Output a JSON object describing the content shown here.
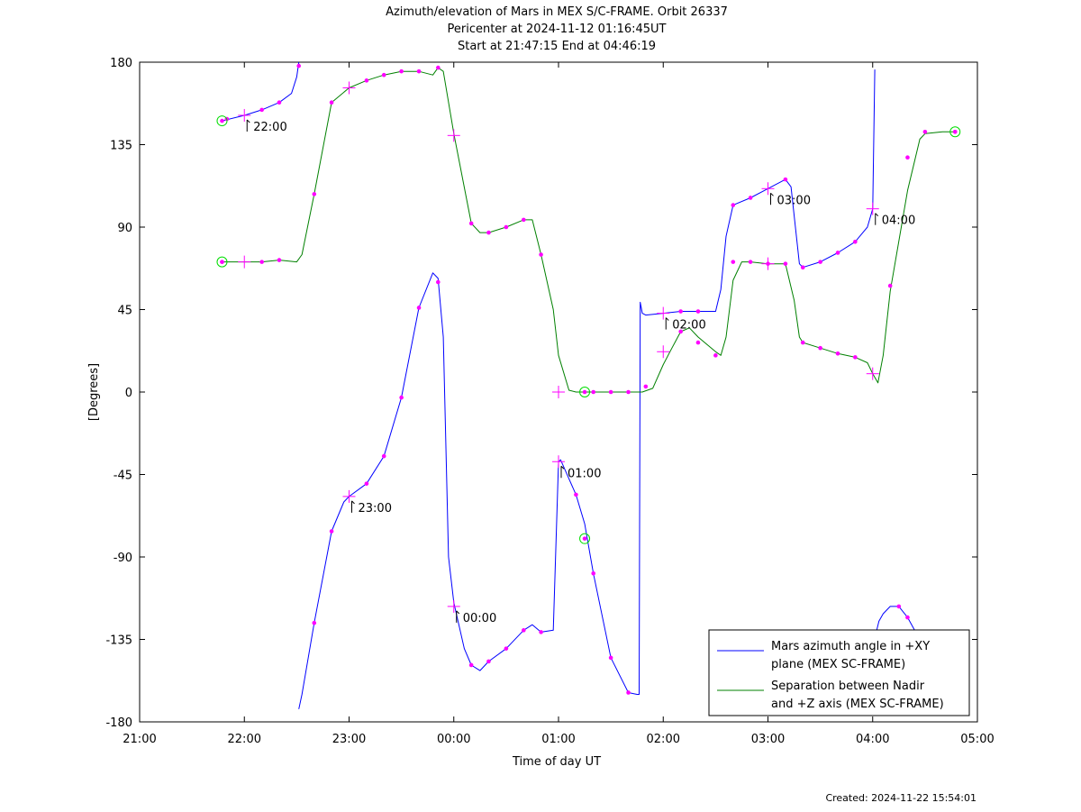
{
  "chart_data": {
    "type": "line",
    "title": [
      "Azimuth/elevation of Mars in MEX S/C-FRAME.  Orbit 26337",
      "Pericenter at 2024-11-12 01:16:45UT",
      "Start at 21:47:15 End at 04:46:19"
    ],
    "xlabel": "Time of day UT",
    "ylabel": "[Degrees]",
    "footer": "Created: 2024-11-22 15:54:01",
    "x_unit": "hours since 21:00 UT",
    "xlim": [
      0,
      8
    ],
    "ylim": [
      -180,
      180
    ],
    "x_tick_labels": [
      "21:00",
      "22:00",
      "23:00",
      "00:00",
      "01:00",
      "02:00",
      "03:00",
      "04:00",
      "05:00"
    ],
    "y_ticks": [
      180,
      135,
      90,
      45,
      0,
      -45,
      -90,
      -135,
      -180
    ],
    "legend": {
      "placement": "bottom-right",
      "entries": [
        {
          "line1": "Mars azimuth angle in +XY",
          "line2": "plane (MEX SC-FRAME)",
          "color": "#0000ff"
        },
        {
          "line1": "Separation between Nadir",
          "line2": "and +Z axis (MEX SC-FRAME)",
          "color": "#008000"
        }
      ]
    },
    "series": [
      {
        "name": "Mars azimuth angle in +XY plane (MEX SC-FRAME)",
        "color": "#0000ff",
        "segments": [
          [
            [
              0.787,
              148
            ],
            [
              1,
              151
            ],
            [
              1.167,
              154
            ],
            [
              1.333,
              158
            ],
            [
              1.45,
              163
            ],
            [
              1.5,
              172
            ],
            [
              1.52,
              180
            ]
          ],
          [
            [
              1.52,
              -173
            ],
            [
              1.55,
              -165
            ],
            [
              1.667,
              -126
            ],
            [
              1.833,
              -76
            ],
            [
              1.95,
              -60
            ],
            [
              2,
              -57
            ],
            [
              2.167,
              -50
            ],
            [
              2.333,
              -35
            ],
            [
              2.5,
              -3
            ],
            [
              2.667,
              46
            ],
            [
              2.8,
              65
            ],
            [
              2.85,
              62
            ],
            [
              2.9,
              30
            ],
            [
              2.95,
              -90
            ],
            [
              3,
              -115
            ],
            [
              3.1,
              -140
            ],
            [
              3.167,
              -149
            ],
            [
              3.25,
              -152
            ],
            [
              3.333,
              -147
            ],
            [
              3.5,
              -140
            ],
            [
              3.667,
              -130
            ],
            [
              3.75,
              -127
            ],
            [
              3.833,
              -131
            ],
            [
              3.95,
              -130
            ],
            [
              4,
              -38
            ],
            [
              4.02,
              -37
            ],
            [
              4.167,
              -56
            ],
            [
              4.25,
              -72
            ],
            [
              4.333,
              -99
            ],
            [
              4.5,
              -145
            ],
            [
              4.667,
              -164
            ],
            [
              4.75,
              -165
            ],
            [
              4.77,
              -165
            ],
            [
              4.78,
              49
            ],
            [
              4.8,
              43
            ],
            [
              4.833,
              42
            ],
            [
              5,
              43
            ],
            [
              5.167,
              44
            ],
            [
              5.333,
              44
            ],
            [
              5.5,
              44
            ],
            [
              5.55,
              56
            ],
            [
              5.6,
              85
            ],
            [
              5.667,
              102
            ],
            [
              5.833,
              106
            ],
            [
              6,
              111
            ],
            [
              6.167,
              116
            ],
            [
              6.22,
              112
            ],
            [
              6.3,
              70
            ],
            [
              6.333,
              68
            ],
            [
              6.5,
              71
            ],
            [
              6.667,
              76
            ],
            [
              6.833,
              82
            ],
            [
              6.95,
              90
            ],
            [
              7,
              100
            ],
            [
              7.02,
              176
            ]
          ],
          [
            [
              7.03,
              -132
            ],
            [
              7.06,
              -125
            ],
            [
              7.1,
              -121
            ],
            [
              7.167,
              -117
            ],
            [
              7.25,
              -117
            ],
            [
              7.333,
              -123
            ],
            [
              7.4,
              -130
            ]
          ]
        ]
      },
      {
        "name": "Separation between Nadir and +Z axis (MEX SC-FRAME)",
        "color": "#008000",
        "segments": [
          [
            [
              0.787,
              71
            ],
            [
              1,
              71
            ],
            [
              1.167,
              71
            ],
            [
              1.333,
              72
            ],
            [
              1.5,
              71
            ],
            [
              1.55,
              75
            ],
            [
              1.667,
              108
            ],
            [
              1.833,
              158
            ],
            [
              2,
              166
            ],
            [
              2.167,
              170
            ],
            [
              2.333,
              173
            ],
            [
              2.5,
              175
            ],
            [
              2.667,
              175
            ],
            [
              2.8,
              173
            ],
            [
              2.85,
              177
            ],
            [
              2.9,
              175
            ],
            [
              3,
              141
            ],
            [
              3.167,
              92
            ],
            [
              3.25,
              87
            ],
            [
              3.333,
              87
            ],
            [
              3.5,
              90
            ],
            [
              3.667,
              94
            ],
            [
              3.75,
              94
            ],
            [
              3.833,
              75
            ],
            [
              3.95,
              45
            ],
            [
              4,
              20
            ],
            [
              4.1,
              1
            ],
            [
              4.167,
              0
            ],
            [
              4.333,
              0
            ],
            [
              4.5,
              0
            ],
            [
              4.667,
              0
            ],
            [
              4.8,
              0
            ],
            [
              4.9,
              2
            ],
            [
              5,
              15
            ],
            [
              5.083,
              24
            ],
            [
              5.167,
              33
            ],
            [
              5.25,
              35
            ],
            [
              5.333,
              30
            ],
            [
              5.5,
              22
            ],
            [
              5.55,
              20
            ],
            [
              5.6,
              30
            ],
            [
              5.667,
              61
            ],
            [
              5.75,
              71
            ],
            [
              5.833,
              71
            ],
            [
              6,
              70
            ],
            [
              6.167,
              70
            ],
            [
              6.25,
              50
            ],
            [
              6.3,
              30
            ],
            [
              6.333,
              27
            ],
            [
              6.5,
              24
            ],
            [
              6.667,
              21
            ],
            [
              6.833,
              19
            ],
            [
              6.95,
              16
            ],
            [
              7,
              10
            ],
            [
              7.05,
              5
            ],
            [
              7.1,
              20
            ],
            [
              7.167,
              55
            ],
            [
              7.333,
              110
            ],
            [
              7.45,
              138
            ],
            [
              7.5,
              141
            ],
            [
              7.667,
              142
            ],
            [
              7.787,
              142
            ]
          ]
        ]
      }
    ],
    "markers": {
      "color": "#ff00ff",
      "dots": [
        [
          0.833,
          149
        ],
        [
          1.167,
          154
        ],
        [
          1.333,
          158
        ],
        [
          1.52,
          178
        ],
        [
          1.667,
          -126
        ],
        [
          1.833,
          -76
        ],
        [
          2.167,
          -50
        ],
        [
          2.333,
          -35
        ],
        [
          2.5,
          -3
        ],
        [
          2.667,
          46
        ],
        [
          2.85,
          60
        ],
        [
          3.167,
          -149
        ],
        [
          3.333,
          -147
        ],
        [
          3.5,
          -140
        ],
        [
          3.667,
          -130
        ],
        [
          3.833,
          -131
        ],
        [
          4.167,
          -56
        ],
        [
          4.333,
          -99
        ],
        [
          4.5,
          -145
        ],
        [
          4.667,
          -164
        ],
        [
          5.167,
          44
        ],
        [
          5.333,
          44
        ],
        [
          5.667,
          102
        ],
        [
          5.833,
          106
        ],
        [
          6.167,
          116
        ],
        [
          6.333,
          68
        ],
        [
          6.5,
          71
        ],
        [
          6.667,
          76
        ],
        [
          6.833,
          82
        ],
        [
          7.25,
          -117
        ],
        [
          7.333,
          -123
        ],
        [
          0.787,
          71
        ],
        [
          1.167,
          71
        ],
        [
          1.333,
          72
        ],
        [
          1.667,
          108
        ],
        [
          1.833,
          158
        ],
        [
          2.167,
          170
        ],
        [
          2.333,
          173
        ],
        [
          2.5,
          175
        ],
        [
          2.667,
          175
        ],
        [
          2.85,
          177
        ],
        [
          3.167,
          92
        ],
        [
          3.333,
          87
        ],
        [
          3.5,
          90
        ],
        [
          3.667,
          94
        ],
        [
          3.833,
          75
        ],
        [
          4.333,
          0
        ],
        [
          4.5,
          0
        ],
        [
          4.667,
          0
        ],
        [
          4.833,
          3
        ],
        [
          5.167,
          33
        ],
        [
          5.333,
          27
        ],
        [
          5.5,
          20
        ],
        [
          5.667,
          71
        ],
        [
          5.833,
          71
        ],
        [
          6,
          70
        ],
        [
          6.167,
          70
        ],
        [
          6.333,
          27
        ],
        [
          6.5,
          24
        ],
        [
          6.667,
          21
        ],
        [
          6.833,
          19
        ],
        [
          7.167,
          58
        ],
        [
          7.333,
          128
        ],
        [
          7.5,
          142
        ],
        [
          7.787,
          142
        ]
      ],
      "hour_crosses": [
        [
          1,
          151
        ],
        [
          1,
          71
        ],
        [
          2,
          -57
        ],
        [
          2,
          166
        ],
        [
          3,
          -117
        ],
        [
          3,
          140
        ],
        [
          4,
          -38
        ],
        [
          4,
          0
        ],
        [
          5,
          43
        ],
        [
          5,
          22
        ],
        [
          6,
          111
        ],
        [
          6,
          70
        ],
        [
          7,
          100
        ],
        [
          7,
          10
        ]
      ],
      "circles": [
        [
          0.787,
          148
        ],
        [
          0.787,
          71
        ],
        [
          4.25,
          -80
        ],
        [
          4.25,
          0
        ],
        [
          7.787,
          142
        ]
      ],
      "hour_labels": [
        {
          "x": 1,
          "y": 151,
          "text": "22:00"
        },
        {
          "x": 2,
          "y": -57,
          "text": "23:00"
        },
        {
          "x": 3,
          "y": -117,
          "text": "00:00"
        },
        {
          "x": 4,
          "y": -38,
          "text": "01:00"
        },
        {
          "x": 5,
          "y": 43,
          "text": "02:00"
        },
        {
          "x": 6,
          "y": 111,
          "text": "03:00"
        },
        {
          "x": 7,
          "y": 100,
          "text": "04:00"
        }
      ]
    }
  }
}
